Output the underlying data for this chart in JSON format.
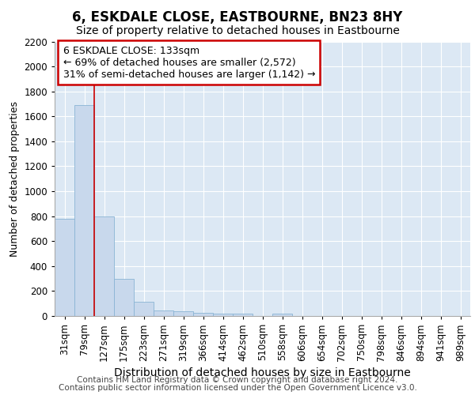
{
  "title1": "6, ESKDALE CLOSE, EASTBOURNE, BN23 8HY",
  "title2": "Size of property relative to detached houses in Eastbourne",
  "xlabel": "Distribution of detached houses by size in Eastbourne",
  "ylabel": "Number of detached properties",
  "categories": [
    "31sqm",
    "79sqm",
    "127sqm",
    "175sqm",
    "223sqm",
    "271sqm",
    "319sqm",
    "366sqm",
    "414sqm",
    "462sqm",
    "510sqm",
    "558sqm",
    "606sqm",
    "654sqm",
    "702sqm",
    "750sqm",
    "798sqm",
    "846sqm",
    "894sqm",
    "941sqm",
    "989sqm"
  ],
  "values": [
    780,
    1690,
    800,
    300,
    115,
    45,
    35,
    28,
    22,
    22,
    0,
    22,
    0,
    0,
    0,
    0,
    0,
    0,
    0,
    0,
    0
  ],
  "bar_color": "#c8d8ec",
  "bar_edge_color": "#8ab4d4",
  "vline_x": 1.5,
  "vline_color": "#cc0000",
  "ylim": [
    0,
    2200
  ],
  "yticks": [
    0,
    200,
    400,
    600,
    800,
    1000,
    1200,
    1400,
    1600,
    1800,
    2000,
    2200
  ],
  "annotation_text": "6 ESKDALE CLOSE: 133sqm\n← 69% of detached houses are smaller (2,572)\n31% of semi-detached houses are larger (1,142) →",
  "annotation_box_color": "#ffffff",
  "annotation_box_edge": "#cc0000",
  "footer1": "Contains HM Land Registry data © Crown copyright and database right 2024.",
  "footer2": "Contains public sector information licensed under the Open Government Licence v3.0.",
  "bg_color": "#dce8f4",
  "grid_color": "#ffffff",
  "title1_fontsize": 12,
  "title2_fontsize": 10,
  "xlabel_fontsize": 10,
  "ylabel_fontsize": 9,
  "tick_fontsize": 8.5,
  "annot_fontsize": 9,
  "footer_fontsize": 7.5
}
